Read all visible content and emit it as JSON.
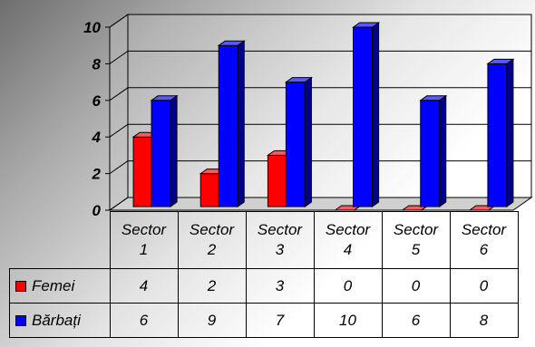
{
  "chart_data": {
    "type": "bar",
    "categories": [
      [
        "Sector",
        "1"
      ],
      [
        "Sector",
        "2"
      ],
      [
        "Sector",
        "3"
      ],
      [
        "Sector",
        "4"
      ],
      [
        "Sector",
        "5"
      ],
      [
        "Sector",
        "6"
      ]
    ],
    "series": [
      {
        "name": "Femei",
        "color": "#ff0000",
        "values": [
          4,
          2,
          3,
          0,
          0,
          0
        ]
      },
      {
        "name": "Bărbați",
        "color": "#0000ff",
        "values": [
          6,
          9,
          7,
          10,
          6,
          8
        ]
      }
    ],
    "yticks": [
      "0",
      "2",
      "4",
      "6",
      "8",
      "10"
    ],
    "ylim": [
      0,
      10
    ],
    "grid": true,
    "legend": "data-table"
  }
}
